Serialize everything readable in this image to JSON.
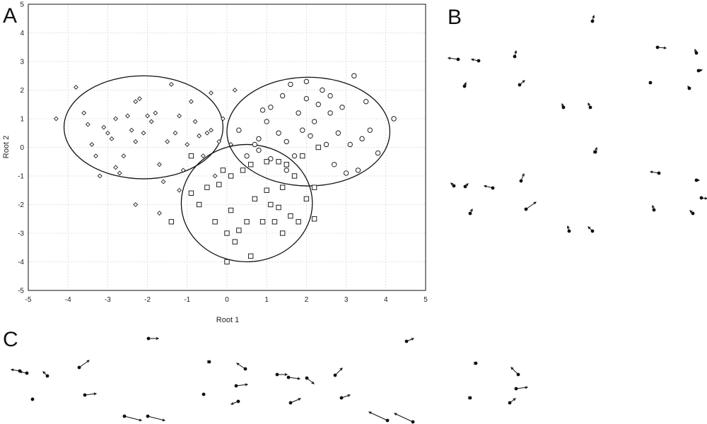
{
  "panels": [
    {
      "label": "A"
    },
    {
      "label": "B"
    },
    {
      "label": "C"
    }
  ],
  "chart_data": {
    "type": "scatter",
    "title": "",
    "xlabel": "Root 1",
    "ylabel": "Root 2",
    "xlim": [
      -5,
      5
    ],
    "ylim": [
      -5,
      5
    ],
    "xticks": [
      "-5",
      "-4",
      "-3",
      "-2",
      "-1",
      "0",
      "1",
      "2",
      "3",
      "4",
      "5"
    ],
    "yticks": [
      "-5",
      "-4",
      "-3",
      "-2",
      "-1",
      "0",
      "1",
      "2",
      "3",
      "4",
      "5"
    ],
    "grid": true,
    "series": [
      {
        "marker": "diamond",
        "points": [
          [
            -4.3,
            1.0
          ],
          [
            -3.8,
            2.1
          ],
          [
            -3.6,
            1.2
          ],
          [
            -3.5,
            0.8
          ],
          [
            -3.4,
            0.1
          ],
          [
            -3.3,
            -0.3
          ],
          [
            -3.2,
            -1.0
          ],
          [
            -3.1,
            0.7
          ],
          [
            -3.0,
            0.5
          ],
          [
            -2.9,
            0.3
          ],
          [
            -2.8,
            1.0
          ],
          [
            -2.8,
            -0.7
          ],
          [
            -2.7,
            -0.9
          ],
          [
            -2.6,
            -0.3
          ],
          [
            -2.5,
            1.1
          ],
          [
            -2.4,
            0.6
          ],
          [
            -2.3,
            1.6
          ],
          [
            -2.3,
            0.2
          ],
          [
            -2.2,
            1.7
          ],
          [
            -2.1,
            0.5
          ],
          [
            -2.0,
            1.1
          ],
          [
            -1.9,
            0.9
          ],
          [
            -1.8,
            1.2
          ],
          [
            -1.7,
            -0.6
          ],
          [
            -1.6,
            -1.2
          ],
          [
            -1.5,
            0.2
          ],
          [
            -1.4,
            2.2
          ],
          [
            -1.3,
            0.5
          ],
          [
            -1.2,
            1.1
          ],
          [
            -1.1,
            -0.8
          ],
          [
            -1.0,
            0.1
          ],
          [
            -0.9,
            1.6
          ],
          [
            -0.8,
            0.9
          ],
          [
            -0.7,
            0.4
          ],
          [
            -0.6,
            -0.3
          ],
          [
            -0.5,
            0.5
          ],
          [
            -0.4,
            0.6
          ],
          [
            -0.3,
            -1.0
          ],
          [
            -0.2,
            0.2
          ],
          [
            -0.1,
            1.0
          ],
          [
            0.1,
            0.1
          ],
          [
            0.2,
            2.0
          ],
          [
            -2.3,
            -2.0
          ],
          [
            -1.7,
            -2.3
          ],
          [
            -1.2,
            -1.5
          ],
          [
            -0.4,
            1.9
          ]
        ]
      },
      {
        "marker": "circle",
        "points": [
          [
            0.3,
            0.6
          ],
          [
            0.5,
            -0.3
          ],
          [
            0.7,
            0.1
          ],
          [
            0.8,
            0.3
          ],
          [
            0.9,
            1.3
          ],
          [
            1.0,
            0.9
          ],
          [
            1.1,
            1.4
          ],
          [
            1.1,
            -0.4
          ],
          [
            1.3,
            0.5
          ],
          [
            1.4,
            1.8
          ],
          [
            1.5,
            0.2
          ],
          [
            1.6,
            2.2
          ],
          [
            1.7,
            -0.3
          ],
          [
            1.8,
            1.2
          ],
          [
            1.9,
            0.6
          ],
          [
            2.0,
            1.7
          ],
          [
            2.1,
            0.4
          ],
          [
            2.2,
            0.9
          ],
          [
            2.3,
            1.5
          ],
          [
            2.4,
            2.0
          ],
          [
            2.5,
            0.1
          ],
          [
            2.6,
            1.2
          ],
          [
            2.7,
            -0.6
          ],
          [
            2.8,
            0.5
          ],
          [
            2.9,
            1.4
          ],
          [
            3.0,
            -0.9
          ],
          [
            3.1,
            0.1
          ],
          [
            3.2,
            2.5
          ],
          [
            3.3,
            -0.8
          ],
          [
            3.4,
            0.3
          ],
          [
            3.5,
            1.6
          ],
          [
            3.6,
            0.6
          ],
          [
            3.8,
            -0.2
          ],
          [
            4.2,
            1.0
          ],
          [
            2.0,
            2.3
          ],
          [
            1.5,
            -0.8
          ],
          [
            0.8,
            -0.1
          ],
          [
            2.6,
            1.8
          ]
        ]
      },
      {
        "marker": "square",
        "points": [
          [
            -1.4,
            -2.6
          ],
          [
            -0.9,
            -1.6
          ],
          [
            -0.9,
            -0.3
          ],
          [
            -0.7,
            -2.0
          ],
          [
            -0.5,
            -1.4
          ],
          [
            -0.3,
            -2.6
          ],
          [
            -0.2,
            -1.3
          ],
          [
            -0.1,
            -0.8
          ],
          [
            0.0,
            -3.0
          ],
          [
            0.0,
            -4.0
          ],
          [
            0.1,
            -2.2
          ],
          [
            0.1,
            -1.0
          ],
          [
            0.2,
            -3.3
          ],
          [
            0.3,
            -2.9
          ],
          [
            0.5,
            -2.6
          ],
          [
            0.6,
            -3.8
          ],
          [
            0.6,
            -0.6
          ],
          [
            0.7,
            -1.8
          ],
          [
            0.9,
            -2.6
          ],
          [
            1.0,
            -1.5
          ],
          [
            1.0,
            -0.5
          ],
          [
            1.1,
            -2.0
          ],
          [
            1.2,
            -2.6
          ],
          [
            1.3,
            -2.1
          ],
          [
            1.4,
            -1.4
          ],
          [
            1.4,
            -3.0
          ],
          [
            1.5,
            -0.6
          ],
          [
            1.6,
            -2.4
          ],
          [
            1.7,
            -1.0
          ],
          [
            1.8,
            -2.6
          ],
          [
            1.9,
            -0.3
          ],
          [
            2.0,
            -1.8
          ],
          [
            2.2,
            -2.5
          ],
          [
            2.2,
            -1.4
          ],
          [
            2.3,
            0.0
          ],
          [
            1.3,
            -0.5
          ],
          [
            0.4,
            -0.8
          ]
        ]
      }
    ],
    "ellipses": [
      {
        "cx": -2.1,
        "cy": 0.7,
        "rx": 2.0,
        "ry": 1.8
      },
      {
        "cx": 2.05,
        "cy": 0.55,
        "rx": 2.05,
        "ry": 1.9
      },
      {
        "cx": 0.5,
        "cy": -1.95,
        "rx": 1.65,
        "ry": 2.05
      }
    ]
  }
}
